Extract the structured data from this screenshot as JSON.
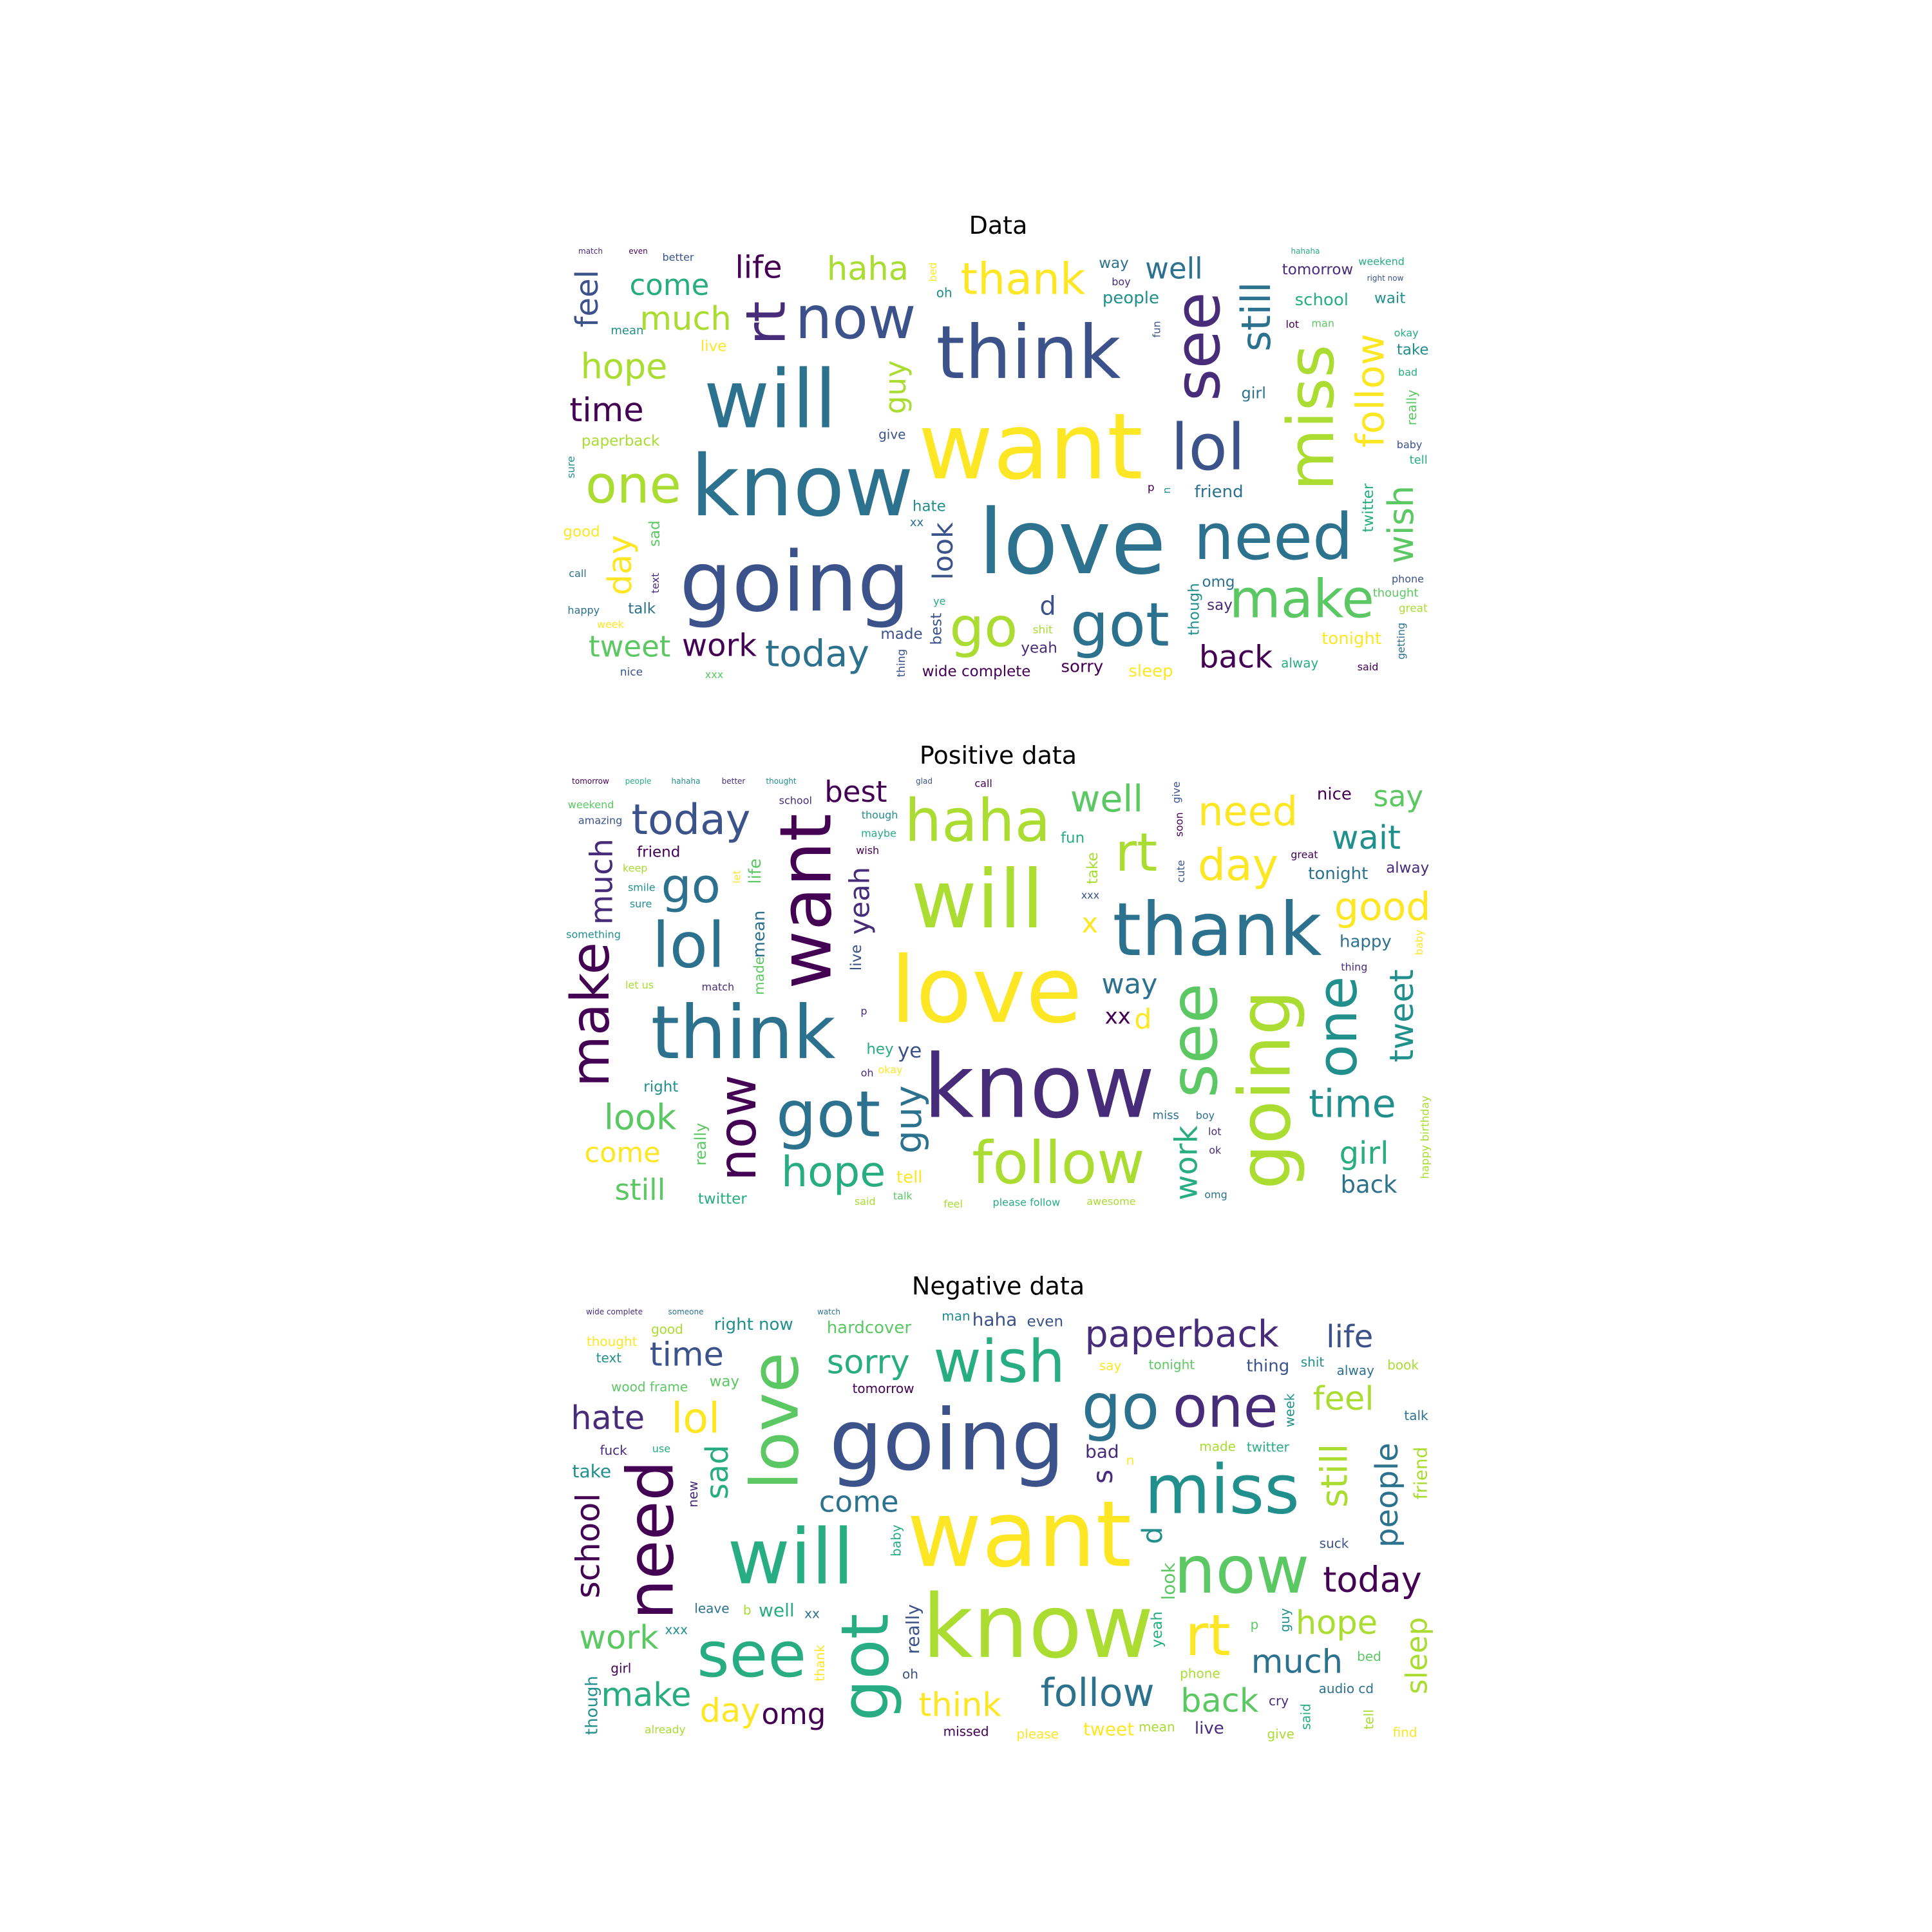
{
  "colors": {
    "palette": [
      "#440154",
      "#472c7a",
      "#3b528b",
      "#2c728e",
      "#21908d",
      "#27ad81",
      "#5cc863",
      "#aadc32",
      "#fde725"
    ]
  },
  "panels": [
    {
      "title": "Data",
      "words": [
        {
          "t": "want",
          "w": 100
        },
        {
          "t": "love",
          "w": 98
        },
        {
          "t": "know",
          "w": 92
        },
        {
          "t": "going",
          "w": 90
        },
        {
          "t": "will",
          "w": 88
        },
        {
          "t": "think",
          "w": 80
        },
        {
          "t": "lol",
          "w": 70
        },
        {
          "t": "miss",
          "w": 70
        },
        {
          "t": "need",
          "w": 70
        },
        {
          "t": "see",
          "w": 68
        },
        {
          "t": "got",
          "w": 66
        },
        {
          "t": "now",
          "w": 64
        },
        {
          "t": "go",
          "w": 60
        },
        {
          "t": "rt",
          "w": 60
        },
        {
          "t": "make",
          "w": 58
        },
        {
          "t": "one",
          "w": 56
        },
        {
          "t": "thank",
          "w": 48
        },
        {
          "t": "still",
          "w": 44
        },
        {
          "t": "follow",
          "w": 42
        },
        {
          "t": "today",
          "w": 40
        },
        {
          "t": "hope",
          "w": 38
        },
        {
          "t": "wish",
          "w": 38
        },
        {
          "t": "time",
          "w": 36
        },
        {
          "t": "much",
          "w": 36
        },
        {
          "t": "day",
          "w": 36
        },
        {
          "t": "haha",
          "w": 36
        },
        {
          "t": "work",
          "w": 34
        },
        {
          "t": "feel",
          "w": 34
        },
        {
          "t": "back",
          "w": 34
        },
        {
          "t": "life",
          "w": 34
        },
        {
          "t": "well",
          "w": 32
        },
        {
          "t": "tweet",
          "w": 32
        },
        {
          "t": "come",
          "w": 32
        },
        {
          "t": "guy",
          "w": 32
        },
        {
          "t": "look",
          "w": 30
        },
        {
          "t": "d",
          "w": 28
        },
        {
          "t": "friend",
          "w": 18
        },
        {
          "t": "people",
          "w": 18
        },
        {
          "t": "sleep",
          "w": 18
        },
        {
          "t": "school",
          "w": 18
        },
        {
          "t": "tonight",
          "w": 18
        },
        {
          "t": "sorry",
          "w": 18
        },
        {
          "t": "girl",
          "w": 17
        },
        {
          "t": "omg",
          "w": 16
        },
        {
          "t": "best",
          "w": 16
        },
        {
          "t": "wide complete",
          "w": 16
        },
        {
          "t": "though",
          "w": 16
        },
        {
          "t": "take",
          "w": 16
        },
        {
          "t": "twitter",
          "w": 16
        },
        {
          "t": "paperback",
          "w": 16
        },
        {
          "t": "tomorrow",
          "w": 16
        },
        {
          "t": "hate",
          "w": 16
        },
        {
          "t": "say",
          "w": 16
        },
        {
          "t": "live",
          "w": 16
        },
        {
          "t": "wait",
          "w": 16
        },
        {
          "t": "yeah",
          "w": 16
        },
        {
          "t": "sad",
          "w": 16
        },
        {
          "t": "made",
          "w": 16
        },
        {
          "t": "way",
          "w": 16
        },
        {
          "t": "good",
          "w": 16
        },
        {
          "t": "talk",
          "w": 16
        },
        {
          "t": "really",
          "w": 14
        },
        {
          "t": "give",
          "w": 14
        },
        {
          "t": "alway",
          "w": 14
        },
        {
          "t": "oh",
          "w": 14
        },
        {
          "t": "tell",
          "w": 13
        },
        {
          "t": "mean",
          "w": 13
        },
        {
          "t": "thought",
          "w": 13
        },
        {
          "t": "xx",
          "w": 13
        },
        {
          "t": "great",
          "w": 12
        },
        {
          "t": "shit",
          "w": 12
        },
        {
          "t": "nice",
          "w": 12
        },
        {
          "t": "thing",
          "w": 12
        },
        {
          "t": "bad",
          "w": 11
        },
        {
          "t": "lot",
          "w": 11
        },
        {
          "t": "n",
          "w": 11
        },
        {
          "t": "okay",
          "w": 11
        },
        {
          "t": "call",
          "w": 11
        },
        {
          "t": "said",
          "w": 11
        },
        {
          "t": "ye",
          "w": 11
        },
        {
          "t": "bed",
          "w": 11
        },
        {
          "t": "xxx",
          "w": 11
        },
        {
          "t": "better",
          "w": 11
        },
        {
          "t": "baby",
          "w": 11
        },
        {
          "t": "p",
          "w": 12
        },
        {
          "t": "match",
          "w": 10
        },
        {
          "t": "text",
          "w": 10
        },
        {
          "t": "week",
          "w": 10
        },
        {
          "t": "even",
          "w": 10
        },
        {
          "t": "fun",
          "w": 10
        },
        {
          "t": "man",
          "w": 10
        },
        {
          "t": "weekend",
          "w": 10
        },
        {
          "t": "boy",
          "w": 10
        },
        {
          "t": "happy",
          "w": 10
        },
        {
          "t": "sure",
          "w": 10
        },
        {
          "t": "hahaha",
          "w": 10
        },
        {
          "t": "getting",
          "w": 10
        },
        {
          "t": "right now",
          "w": 10
        },
        {
          "t": "phone",
          "w": 10
        }
      ]
    },
    {
      "title": "Positive data",
      "words": [
        {
          "t": "love",
          "w": 100
        },
        {
          "t": "know",
          "w": 96
        },
        {
          "t": "will",
          "w": 88
        },
        {
          "t": "think",
          "w": 80
        },
        {
          "t": "thank",
          "w": 80
        },
        {
          "t": "going",
          "w": 78
        },
        {
          "t": "want",
          "w": 78
        },
        {
          "t": "see",
          "w": 72
        },
        {
          "t": "got",
          "w": 70
        },
        {
          "t": "lol",
          "w": 68
        },
        {
          "t": "follow",
          "w": 64
        },
        {
          "t": "haha",
          "w": 64
        },
        {
          "t": "one",
          "w": 60
        },
        {
          "t": "make",
          "w": 58
        },
        {
          "t": "rt",
          "w": 58
        },
        {
          "t": "now",
          "w": 56
        },
        {
          "t": "go",
          "w": 52
        },
        {
          "t": "day",
          "w": 48
        },
        {
          "t": "hope",
          "w": 46
        },
        {
          "t": "today",
          "w": 46
        },
        {
          "t": "need",
          "w": 44
        },
        {
          "t": "good",
          "w": 42
        },
        {
          "t": "time",
          "w": 42
        },
        {
          "t": "guy",
          "w": 40
        },
        {
          "t": "well",
          "w": 40
        },
        {
          "t": "look",
          "w": 38
        },
        {
          "t": "tomorrow",
          "w": 36
        },
        {
          "t": "wait",
          "w": 36
        },
        {
          "t": "tweet",
          "w": 36
        },
        {
          "t": "work",
          "w": 34
        },
        {
          "t": "much",
          "w": 34
        },
        {
          "t": "girl",
          "w": 34
        },
        {
          "t": "still",
          "w": 32
        },
        {
          "t": "best",
          "w": 32
        },
        {
          "t": "say",
          "w": 32
        },
        {
          "t": "come",
          "w": 30
        },
        {
          "t": "yeah",
          "w": 30
        },
        {
          "t": "way",
          "w": 30
        },
        {
          "t": "x",
          "w": 30
        },
        {
          "t": "d",
          "w": 30
        },
        {
          "t": "back",
          "w": 26
        },
        {
          "t": "people",
          "w": 26
        },
        {
          "t": "xx",
          "w": 24
        },
        {
          "t": "ye",
          "w": 22
        },
        {
          "t": "mean",
          "w": 18
        },
        {
          "t": "happy",
          "w": 18
        },
        {
          "t": "tell",
          "w": 18
        },
        {
          "t": "nice",
          "w": 18
        },
        {
          "t": "tonight",
          "w": 18
        },
        {
          "t": "really",
          "w": 17
        },
        {
          "t": "alway",
          "w": 16
        },
        {
          "t": "life",
          "w": 18
        },
        {
          "t": "fun",
          "w": 16
        },
        {
          "t": "hey",
          "w": 16
        },
        {
          "t": "live",
          "w": 16
        },
        {
          "t": "friend",
          "w": 16
        },
        {
          "t": "made",
          "w": 15
        },
        {
          "t": "right",
          "w": 16
        },
        {
          "t": "take",
          "w": 16
        },
        {
          "t": "hahaha",
          "w": 15
        },
        {
          "t": "better",
          "w": 16
        },
        {
          "t": "twitter",
          "w": 16
        },
        {
          "t": "miss",
          "w": 13
        },
        {
          "t": "happy birthday",
          "w": 12
        },
        {
          "t": "okay",
          "w": 11
        },
        {
          "t": "match",
          "w": 10
        },
        {
          "t": "cute",
          "w": 10
        },
        {
          "t": "maybe",
          "w": 10
        },
        {
          "t": "boy",
          "w": 10
        },
        {
          "t": "thing",
          "w": 10
        },
        {
          "t": "amazing",
          "w": 10
        },
        {
          "t": "awesome",
          "w": 10
        },
        {
          "t": "great",
          "w": 10
        },
        {
          "t": "though",
          "w": 10
        },
        {
          "t": "oh",
          "w": 10
        },
        {
          "t": "talk",
          "w": 10
        },
        {
          "t": "wish",
          "w": 10
        },
        {
          "t": "call",
          "w": 10
        },
        {
          "t": "let us",
          "w": 10
        },
        {
          "t": "sure",
          "w": 10
        },
        {
          "t": "soon",
          "w": 10
        },
        {
          "t": "let",
          "w": 10
        },
        {
          "t": "weekend",
          "w": 10
        },
        {
          "t": "baby",
          "w": 11
        },
        {
          "t": "said",
          "w": 11
        },
        {
          "t": "lot",
          "w": 11
        },
        {
          "t": "give",
          "w": 10
        },
        {
          "t": "school",
          "w": 11
        },
        {
          "t": "something",
          "w": 10
        },
        {
          "t": "keep",
          "w": 10
        },
        {
          "t": "thought",
          "w": 10
        },
        {
          "t": "smile",
          "w": 10
        },
        {
          "t": "xxx",
          "w": 10
        },
        {
          "t": "please follow",
          "w": 10
        },
        {
          "t": "feel",
          "w": 11
        },
        {
          "t": "glad",
          "w": 10
        },
        {
          "t": "ok",
          "w": 10
        },
        {
          "t": "p",
          "w": 10
        },
        {
          "t": "omg",
          "w": 10
        }
      ]
    },
    {
      "title": "Negative data",
      "words": [
        {
          "t": "want",
          "w": 100
        },
        {
          "t": "know",
          "w": 96
        },
        {
          "t": "going",
          "w": 92
        },
        {
          "t": "will",
          "w": 84
        },
        {
          "t": "miss",
          "w": 74
        },
        {
          "t": "now",
          "w": 72
        },
        {
          "t": "love",
          "w": 72
        },
        {
          "t": "got",
          "w": 72
        },
        {
          "t": "need",
          "w": 70
        },
        {
          "t": "go",
          "w": 68
        },
        {
          "t": "see",
          "w": 68
        },
        {
          "t": "wish",
          "w": 64
        },
        {
          "t": "rt",
          "w": 62
        },
        {
          "t": "one",
          "w": 62
        },
        {
          "t": "lol",
          "w": 46
        },
        {
          "t": "follow",
          "w": 42
        },
        {
          "t": "paperback",
          "w": 40
        },
        {
          "t": "still",
          "w": 40
        },
        {
          "t": "wide complete",
          "w": 40
        },
        {
          "t": "today",
          "w": 38
        },
        {
          "t": "think",
          "w": 36
        },
        {
          "t": "school",
          "w": 36
        },
        {
          "t": "sorry",
          "w": 36
        },
        {
          "t": "hope",
          "w": 36
        },
        {
          "t": "back",
          "w": 36
        },
        {
          "t": "much",
          "w": 36
        },
        {
          "t": "time",
          "w": 36
        },
        {
          "t": "work",
          "w": 36
        },
        {
          "t": "hate",
          "w": 36
        },
        {
          "t": "day",
          "w": 36
        },
        {
          "t": "feel",
          "w": 36
        },
        {
          "t": "make",
          "w": 36
        },
        {
          "t": "people",
          "w": 34
        },
        {
          "t": "sad",
          "w": 34
        },
        {
          "t": "life",
          "w": 34
        },
        {
          "t": "come",
          "w": 32
        },
        {
          "t": "sleep",
          "w": 32
        },
        {
          "t": "omg",
          "w": 32
        },
        {
          "t": "d",
          "w": 30
        },
        {
          "t": "s",
          "w": 30
        },
        {
          "t": "really",
          "w": 20
        },
        {
          "t": "well",
          "w": 20
        },
        {
          "t": "haha",
          "w": 20
        },
        {
          "t": "tweet",
          "w": 20
        },
        {
          "t": "bad",
          "w": 20
        },
        {
          "t": "look",
          "w": 20
        },
        {
          "t": "take",
          "w": 20
        },
        {
          "t": "friend",
          "w": 20
        },
        {
          "t": "thing",
          "w": 18
        },
        {
          "t": "hardcover",
          "w": 18
        },
        {
          "t": "though",
          "w": 18
        },
        {
          "t": "right now",
          "w": 18
        },
        {
          "t": "live",
          "w": 18
        },
        {
          "t": "yeah",
          "w": 16
        },
        {
          "t": "even",
          "w": 16
        },
        {
          "t": "twitter",
          "w": 14
        },
        {
          "t": "phone",
          "w": 14
        },
        {
          "t": "please",
          "w": 14
        },
        {
          "t": "tonight",
          "w": 14
        },
        {
          "t": "missed",
          "w": 14
        },
        {
          "t": "guy",
          "w": 14
        },
        {
          "t": "tomorrow",
          "w": 14
        },
        {
          "t": "wood frame",
          "w": 14
        },
        {
          "t": "leave",
          "w": 14
        },
        {
          "t": "alway",
          "w": 14
        },
        {
          "t": "week",
          "w": 14
        },
        {
          "t": "talk",
          "w": 14
        },
        {
          "t": "xx",
          "w": 14
        },
        {
          "t": "suck",
          "w": 14
        },
        {
          "t": "fuck",
          "w": 14
        },
        {
          "t": "baby",
          "w": 14
        },
        {
          "t": "xxx",
          "w": 14
        },
        {
          "t": "oh",
          "w": 14
        },
        {
          "t": "say",
          "w": 14
        },
        {
          "t": "made",
          "w": 14
        },
        {
          "t": "text",
          "w": 14
        },
        {
          "t": "bed",
          "w": 14
        },
        {
          "t": "cry",
          "w": 14
        },
        {
          "t": "audio cd",
          "w": 14
        },
        {
          "t": "thank",
          "w": 14
        },
        {
          "t": "good",
          "w": 14
        },
        {
          "t": "way",
          "w": 16
        },
        {
          "t": "girl",
          "w": 14
        },
        {
          "t": "book",
          "w": 14
        },
        {
          "t": "new",
          "w": 14
        },
        {
          "t": "tell",
          "w": 14
        },
        {
          "t": "said",
          "w": 14
        },
        {
          "t": "someone",
          "w": 14
        },
        {
          "t": "give",
          "w": 14
        },
        {
          "t": "thought",
          "w": 14
        },
        {
          "t": "find",
          "w": 14
        },
        {
          "t": "mean",
          "w": 14
        },
        {
          "t": "man",
          "w": 14
        },
        {
          "t": "use",
          "w": 10
        },
        {
          "t": "shit",
          "w": 14
        },
        {
          "t": "already",
          "w": 12
        },
        {
          "t": "n",
          "w": 14
        },
        {
          "t": "watch",
          "w": 14
        },
        {
          "t": "p",
          "w": 14
        },
        {
          "t": "b",
          "w": 14
        }
      ]
    }
  ]
}
